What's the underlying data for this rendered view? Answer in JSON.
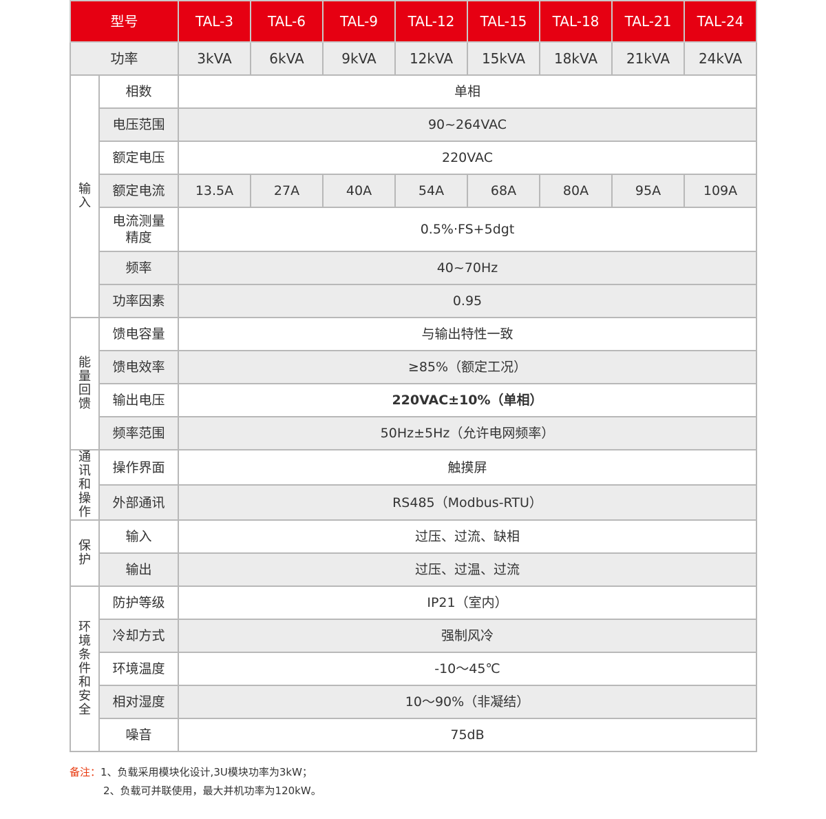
{
  "header": {
    "model_label": "型号",
    "models": [
      "TAL-3",
      "TAL-6",
      "TAL-9",
      "TAL-12",
      "TAL-15",
      "TAL-18",
      "TAL-21",
      "TAL-24"
    ]
  },
  "power": {
    "label": "功率",
    "values": [
      "3kVA",
      "6kVA",
      "9kVA",
      "12kVA",
      "15kVA",
      "18kVA",
      "21kVA",
      "24kVA"
    ]
  },
  "groups": [
    {
      "name": "输入",
      "rows": [
        {
          "label": "相数",
          "value": "单相"
        },
        {
          "label": "电压范围",
          "value": "90~264VAC",
          "gray": true
        },
        {
          "label": "额定电压",
          "value": "220VAC"
        },
        {
          "label": "额定电流",
          "values": [
            "13.5A",
            "27A",
            "40A",
            "54A",
            "68A",
            "80A",
            "95A",
            "109A"
          ],
          "gray": true
        },
        {
          "label": "电流测量精度",
          "value": "0.5%·FS+5dgt",
          "tall": true
        },
        {
          "label": "频率",
          "value": "40~70Hz",
          "gray": true
        },
        {
          "label": "功率因素",
          "value": "0.95",
          "gray": true
        }
      ]
    },
    {
      "name": "能量回馈",
      "rows": [
        {
          "label": "馈电容量",
          "value": "与输出特性一致"
        },
        {
          "label": "馈电效率",
          "value": "≥85%（额定工况）",
          "gray": true
        },
        {
          "label": "输出电压",
          "value": "220VAC±10%（单相）",
          "bold": true
        },
        {
          "label": "频率范围",
          "value": "50Hz±5Hz（允许电网频率）",
          "gray": true
        }
      ]
    },
    {
      "name": "通讯和操作",
      "rows": [
        {
          "label": "操作界面",
          "value": "触摸屏"
        },
        {
          "label": "外部通讯",
          "value": "RS485（Modbus-RTU）",
          "gray": true
        }
      ]
    },
    {
      "name": "保护",
      "rows": [
        {
          "label": "输入",
          "value": "过压、过流、缺相"
        },
        {
          "label": "输出",
          "value": "过压、过温、过流",
          "gray": true
        }
      ]
    },
    {
      "name": "环境条件和安全",
      "rows": [
        {
          "label": "防护等级",
          "value": "IP21（室内）"
        },
        {
          "label": "冷却方式",
          "value": "强制风冷",
          "gray": true
        },
        {
          "label": "环境温度",
          "value": "-10～45℃"
        },
        {
          "label": "相对湿度",
          "value": "10～90%（非凝结）",
          "gray": true
        },
        {
          "label": "噪音",
          "value": "75dB"
        }
      ]
    }
  ],
  "notes": {
    "label": "备注：",
    "line1": "1、负载采用模块化设计,3U模块功率为3kW；",
    "line2": "2、负载可并联使用，最大并机功率为120kW。"
  }
}
